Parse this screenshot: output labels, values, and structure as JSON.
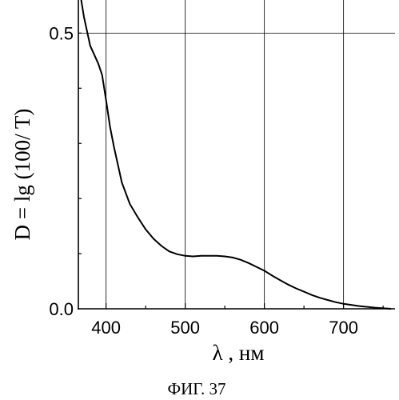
{
  "chart_data": {
    "type": "line",
    "xlabel": "λ , нм",
    "ylabel": "D = lg (100/ T)",
    "xlim": [
      365,
      765
    ],
    "ylim": [
      0,
      0.56
    ],
    "xticks": [
      400,
      500,
      600,
      700
    ],
    "yticks": [
      0.0,
      0.5
    ],
    "x_tick_labels": [
      "400",
      "500",
      "600",
      "700"
    ],
    "y_tick_labels": [
      "0.0",
      "0.5"
    ],
    "grid": true,
    "series": [
      {
        "x": [
          368,
          372,
          380,
          390,
          395,
          400,
          405,
          410,
          420,
          430,
          440,
          450,
          460,
          470,
          480,
          490,
          500,
          510,
          520,
          530,
          540,
          550,
          560,
          570,
          580,
          590,
          600,
          610,
          620,
          630,
          640,
          650,
          660,
          670,
          680,
          690,
          700,
          720,
          740,
          760
        ],
        "y": [
          0.565,
          0.53,
          0.477,
          0.445,
          0.424,
          0.378,
          0.33,
          0.293,
          0.229,
          0.19,
          0.166,
          0.144,
          0.127,
          0.114,
          0.104,
          0.099,
          0.096,
          0.095,
          0.096,
          0.096,
          0.096,
          0.095,
          0.093,
          0.089,
          0.083,
          0.076,
          0.069,
          0.06,
          0.052,
          0.044,
          0.037,
          0.031,
          0.025,
          0.02,
          0.016,
          0.012,
          0.009,
          0.005,
          0.002,
          0.0
        ]
      }
    ]
  },
  "caption": "ФИГ. 37"
}
